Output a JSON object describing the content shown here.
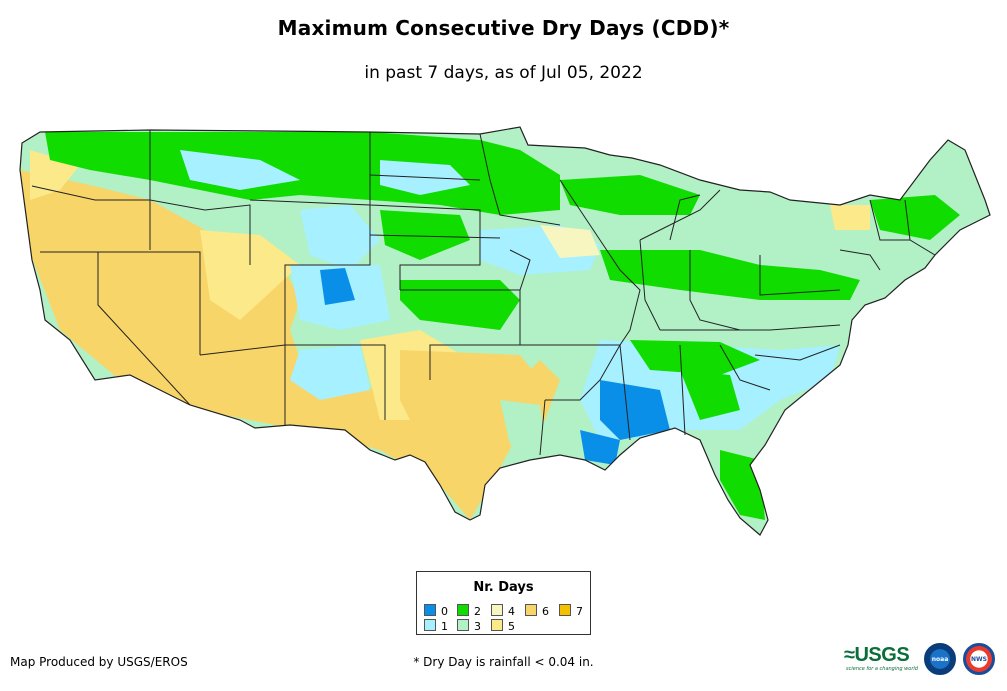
{
  "title": "Maximum Consecutive Dry Days (CDD)*",
  "subtitle": "in past 7 days, as of Jul 05, 2022",
  "legend": {
    "title": "Nr. Days",
    "items": [
      {
        "label": "0",
        "color": "#0a8fe8"
      },
      {
        "label": "1",
        "color": "#a6f0ff"
      },
      {
        "label": "2",
        "color": "#10dc00"
      },
      {
        "label": "3",
        "color": "#b2f0c6"
      },
      {
        "label": "4",
        "color": "#f8f6c0"
      },
      {
        "label": "5",
        "color": "#fbe98a"
      },
      {
        "label": "6",
        "color": "#f8d568"
      },
      {
        "label": "7",
        "color": "#f5c000"
      }
    ]
  },
  "footer": {
    "credit": "Map Produced by USGS/EROS",
    "footnote": "* Dry Day is rainfall < 0.04 in."
  },
  "logos": {
    "usgs": "≈USGS",
    "usgs_tagline": "science for a changing world",
    "noaa": "noaa",
    "nws": "NWS"
  }
}
